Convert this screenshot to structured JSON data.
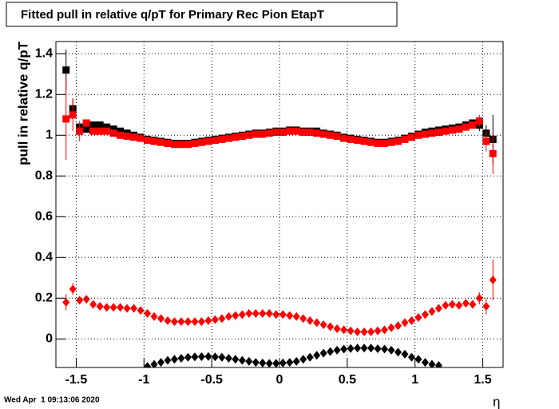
{
  "chart_data": {
    "type": "scatter",
    "title": "Fitted pull in relative q/pT for Primary Rec Pion EtapT",
    "ylabel": "pull in relative q/pT",
    "xlabel": "η",
    "date": "Wed Apr  1 09:13:06 2020",
    "xlim": [
      -1.65,
      1.65
    ],
    "ylim": [
      -0.14,
      1.46
    ],
    "xticks": [
      -1.5,
      -1,
      -0.5,
      0,
      0.5,
      1,
      1.5
    ],
    "yticks": [
      0,
      0.2,
      0.4,
      0.6,
      0.8,
      1,
      1.2,
      1.4
    ],
    "grid": true,
    "x": [
      -1.575,
      -1.525,
      -1.475,
      -1.425,
      -1.375,
      -1.325,
      -1.275,
      -1.225,
      -1.175,
      -1.125,
      -1.075,
      -1.025,
      -0.975,
      -0.925,
      -0.875,
      -0.825,
      -0.775,
      -0.725,
      -0.675,
      -0.625,
      -0.575,
      -0.525,
      -0.475,
      -0.425,
      -0.375,
      -0.325,
      -0.275,
      -0.225,
      -0.175,
      -0.125,
      -0.075,
      -0.025,
      0.025,
      0.075,
      0.125,
      0.175,
      0.225,
      0.275,
      0.325,
      0.375,
      0.425,
      0.475,
      0.525,
      0.575,
      0.625,
      0.675,
      0.725,
      0.775,
      0.825,
      0.875,
      0.925,
      0.975,
      1.025,
      1.075,
      1.125,
      1.175,
      1.225,
      1.275,
      1.325,
      1.375,
      1.425,
      1.475,
      1.525,
      1.575
    ],
    "series": [
      {
        "color": "#000000",
        "marker": "square",
        "values": [
          1.32,
          1.13,
          1.04,
          1.03,
          1.05,
          1.05,
          1.04,
          1.03,
          1.02,
          1.01,
          1.0,
          0.99,
          0.98,
          0.975,
          0.97,
          0.965,
          0.96,
          0.96,
          0.96,
          0.965,
          0.97,
          0.975,
          0.98,
          0.985,
          0.99,
          0.995,
          1.0,
          1.005,
          1.01,
          1.01,
          1.015,
          1.02,
          1.02,
          1.025,
          1.025,
          1.02,
          1.02,
          1.02,
          1.01,
          1.005,
          1.0,
          0.99,
          0.985,
          0.98,
          0.975,
          0.97,
          0.965,
          0.965,
          0.97,
          0.975,
          0.985,
          0.995,
          1.005,
          1.015,
          1.02,
          1.025,
          1.03,
          1.035,
          1.04,
          1.05,
          1.06,
          1.05,
          1.01,
          0.98
        ],
        "errors": [
          0.1,
          0.05,
          null,
          null,
          null,
          null,
          null,
          null,
          null,
          null,
          null,
          null,
          null,
          null,
          null,
          null,
          null,
          null,
          null,
          null,
          null,
          null,
          null,
          null,
          null,
          null,
          null,
          null,
          null,
          null,
          null,
          null,
          null,
          null,
          null,
          null,
          null,
          null,
          null,
          null,
          null,
          null,
          null,
          null,
          null,
          null,
          null,
          null,
          null,
          null,
          null,
          null,
          null,
          null,
          null,
          null,
          null,
          null,
          null,
          null,
          null,
          0.03,
          0.04,
          0.12
        ]
      },
      {
        "color": "#ff0000",
        "marker": "square",
        "values": [
          1.08,
          1.1,
          1.02,
          1.06,
          1.02,
          1.02,
          1.02,
          1.01,
          1.0,
          0.995,
          0.99,
          0.985,
          0.975,
          0.97,
          0.965,
          0.96,
          0.955,
          0.955,
          0.955,
          0.96,
          0.965,
          0.97,
          0.975,
          0.98,
          0.985,
          0.99,
          0.995,
          1.0,
          1.005,
          1.005,
          1.01,
          1.015,
          1.015,
          1.02,
          1.02,
          1.015,
          1.015,
          1.01,
          1.005,
          1.0,
          0.995,
          0.985,
          0.98,
          0.975,
          0.97,
          0.965,
          0.96,
          0.96,
          0.965,
          0.97,
          0.98,
          0.99,
          1.0,
          1.005,
          1.01,
          1.015,
          1.02,
          1.025,
          1.03,
          1.04,
          1.05,
          1.07,
          0.97,
          0.91
        ],
        "errors": [
          0.2,
          0.08,
          0.05,
          null,
          null,
          null,
          null,
          null,
          null,
          null,
          null,
          null,
          null,
          null,
          null,
          null,
          null,
          null,
          null,
          null,
          null,
          null,
          null,
          null,
          null,
          null,
          null,
          null,
          null,
          null,
          null,
          null,
          null,
          null,
          null,
          null,
          null,
          null,
          null,
          null,
          null,
          null,
          null,
          null,
          null,
          null,
          null,
          null,
          null,
          null,
          null,
          null,
          null,
          null,
          null,
          null,
          null,
          null,
          null,
          null,
          null,
          0.03,
          0.05,
          0.1
        ]
      },
      {
        "color": "#ff0000",
        "marker": "diamond",
        "values": [
          0.18,
          0.245,
          0.19,
          0.195,
          0.17,
          0.16,
          0.155,
          0.155,
          0.155,
          0.15,
          0.15,
          0.14,
          0.125,
          0.11,
          0.1,
          0.09,
          0.085,
          0.085,
          0.085,
          0.085,
          0.085,
          0.09,
          0.095,
          0.1,
          0.11,
          0.115,
          0.12,
          0.125,
          0.125,
          0.125,
          0.125,
          0.12,
          0.12,
          0.115,
          0.11,
          0.1,
          0.09,
          0.08,
          0.07,
          0.06,
          0.05,
          0.045,
          0.04,
          0.035,
          0.035,
          0.035,
          0.04,
          0.045,
          0.055,
          0.065,
          0.08,
          0.09,
          0.105,
          0.12,
          0.135,
          0.15,
          0.165,
          0.17,
          0.165,
          0.175,
          0.17,
          0.2,
          0.16,
          0.29
        ],
        "errors": [
          0.04,
          0.03,
          null,
          null,
          null,
          null,
          null,
          null,
          null,
          null,
          null,
          null,
          null,
          null,
          null,
          null,
          null,
          null,
          null,
          null,
          null,
          null,
          null,
          null,
          null,
          null,
          null,
          null,
          null,
          null,
          null,
          null,
          null,
          null,
          null,
          null,
          null,
          null,
          null,
          null,
          null,
          null,
          null,
          null,
          null,
          null,
          null,
          null,
          null,
          null,
          null,
          null,
          null,
          null,
          null,
          null,
          null,
          null,
          null,
          null,
          null,
          0.03,
          0.04,
          0.1
        ]
      },
      {
        "color": "#000000",
        "marker": "diamond",
        "values": [
          null,
          null,
          null,
          null,
          null,
          null,
          null,
          null,
          null,
          null,
          null,
          null,
          -0.135,
          -0.125,
          -0.115,
          -0.105,
          -0.1,
          -0.095,
          -0.09,
          -0.088,
          -0.087,
          -0.086,
          -0.088,
          -0.09,
          -0.095,
          -0.1,
          -0.105,
          -0.11,
          -0.115,
          -0.118,
          -0.12,
          -0.12,
          -0.118,
          -0.115,
          -0.11,
          -0.1,
          -0.09,
          -0.08,
          -0.07,
          -0.062,
          -0.055,
          -0.05,
          -0.047,
          -0.045,
          -0.045,
          -0.045,
          -0.048,
          -0.05,
          -0.055,
          -0.065,
          -0.075,
          -0.09,
          -0.1,
          -0.115,
          -0.125,
          -0.13,
          null,
          null,
          null,
          null,
          null,
          null,
          null,
          null
        ]
      }
    ]
  }
}
